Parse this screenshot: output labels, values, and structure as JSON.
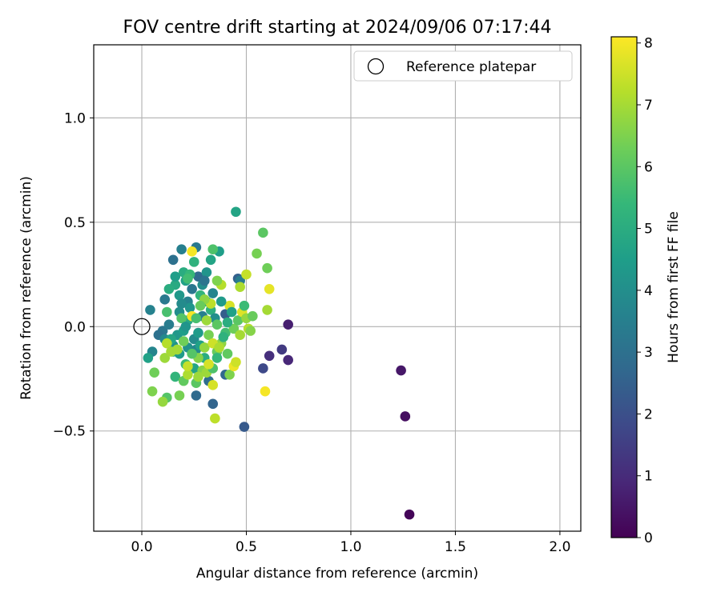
{
  "chart_data": {
    "type": "scatter",
    "title": "FOV centre drift starting at 2024/09/06 07:17:44",
    "xlabel": "Angular distance from reference (arcmin)",
    "ylabel": "Rotation from reference (arcmin)",
    "xlim": [
      -0.23,
      2.1
    ],
    "ylim": [
      -0.98,
      1.35
    ],
    "xticks": [
      0.0,
      0.5,
      1.0,
      1.5,
      2.0
    ],
    "xtick_labels": [
      "0.0",
      "0.5",
      "1.0",
      "1.5",
      "2.0"
    ],
    "yticks": [
      -0.5,
      0.0,
      0.5,
      1.0
    ],
    "ytick_labels": [
      "−0.5",
      "0.0",
      "0.5",
      "1.0"
    ],
    "grid": true,
    "legend": {
      "placement": "top-right",
      "entries": [
        {
          "label": "Reference platepar",
          "marker": "open-circle"
        }
      ]
    },
    "reference_point": {
      "x": 0.0,
      "y": 0.0
    },
    "colorbar": {
      "label": "Hours from first FF file",
      "range": [
        0,
        8.1
      ],
      "ticks": [
        0,
        1,
        2,
        3,
        4,
        5,
        6,
        7,
        8
      ],
      "tick_labels": [
        "0",
        "1",
        "2",
        "3",
        "4",
        "5",
        "6",
        "7",
        "8"
      ],
      "colormap": "viridis",
      "colormap_stops": [
        "#440154",
        "#482878",
        "#3e4989",
        "#31688e",
        "#26828e",
        "#1f9e89",
        "#35b779",
        "#6ece58",
        "#b5de2b",
        "#fde725"
      ]
    },
    "points": [
      {
        "x": 1.28,
        "y": -0.9,
        "c": 0.1
      },
      {
        "x": 1.26,
        "y": -0.43,
        "c": 0.3
      },
      {
        "x": 1.24,
        "y": -0.21,
        "c": 0.5
      },
      {
        "x": 0.7,
        "y": 0.01,
        "c": 0.7
      },
      {
        "x": 0.7,
        "y": -0.16,
        "c": 0.9
      },
      {
        "x": 0.61,
        "y": -0.14,
        "c": 1.1
      },
      {
        "x": 0.67,
        "y": -0.11,
        "c": 1.4
      },
      {
        "x": 0.58,
        "y": -0.2,
        "c": 1.8
      },
      {
        "x": 0.49,
        "y": -0.48,
        "c": 2.3
      },
      {
        "x": 0.34,
        "y": -0.37,
        "c": 2.6
      },
      {
        "x": 0.26,
        "y": -0.33,
        "c": 2.8
      },
      {
        "x": 0.4,
        "y": -0.23,
        "c": 2.7
      },
      {
        "x": 0.32,
        "y": -0.26,
        "c": 2.9
      },
      {
        "x": 0.46,
        "y": 0.23,
        "c": 2.5
      },
      {
        "x": 0.47,
        "y": 0.22,
        "c": 3.4
      },
      {
        "x": 0.45,
        "y": 0.55,
        "c": 4.7
      },
      {
        "x": 0.4,
        "y": 0.06,
        "c": 2.4
      },
      {
        "x": 0.26,
        "y": 0.38,
        "c": 3.3
      },
      {
        "x": 0.19,
        "y": 0.37,
        "c": 3.5
      },
      {
        "x": 0.15,
        "y": 0.32,
        "c": 3.0
      },
      {
        "x": 0.27,
        "y": 0.24,
        "c": 2.8
      },
      {
        "x": 0.24,
        "y": 0.18,
        "c": 3.2
      },
      {
        "x": 0.22,
        "y": 0.12,
        "c": 3.6
      },
      {
        "x": 0.18,
        "y": 0.07,
        "c": 4.0
      },
      {
        "x": 0.11,
        "y": 0.13,
        "c": 3.3
      },
      {
        "x": 0.04,
        "y": 0.08,
        "c": 3.6
      },
      {
        "x": 0.1,
        "y": -0.02,
        "c": 3.2
      },
      {
        "x": 0.08,
        "y": -0.04,
        "c": 3.0
      },
      {
        "x": 0.13,
        "y": 0.01,
        "c": 3.4
      },
      {
        "x": 0.05,
        "y": -0.12,
        "c": 3.7
      },
      {
        "x": 0.03,
        "y": -0.15,
        "c": 4.6
      },
      {
        "x": 0.11,
        "y": -0.06,
        "c": 3.8
      },
      {
        "x": 0.15,
        "y": -0.09,
        "c": 4.1
      },
      {
        "x": 0.17,
        "y": -0.04,
        "c": 4.3
      },
      {
        "x": 0.2,
        "y": -0.02,
        "c": 4.5
      },
      {
        "x": 0.22,
        "y": 0.03,
        "c": 4.9
      },
      {
        "x": 0.23,
        "y": 0.09,
        "c": 4.2
      },
      {
        "x": 0.25,
        "y": -0.06,
        "c": 3.9
      },
      {
        "x": 0.27,
        "y": -0.03,
        "c": 4.4
      },
      {
        "x": 0.29,
        "y": 0.05,
        "c": 3.5
      },
      {
        "x": 0.31,
        "y": 0.12,
        "c": 4.8
      },
      {
        "x": 0.33,
        "y": 0.08,
        "c": 5.1
      },
      {
        "x": 0.34,
        "y": 0.16,
        "c": 3.7
      },
      {
        "x": 0.35,
        "y": 0.04,
        "c": 4.0
      },
      {
        "x": 0.28,
        "y": 0.15,
        "c": 5.3
      },
      {
        "x": 0.21,
        "y": 0.22,
        "c": 4.6
      },
      {
        "x": 0.2,
        "y": 0.26,
        "c": 5.0
      },
      {
        "x": 0.23,
        "y": 0.25,
        "c": 5.4
      },
      {
        "x": 0.16,
        "y": 0.2,
        "c": 4.9
      },
      {
        "x": 0.18,
        "y": 0.15,
        "c": 4.3
      },
      {
        "x": 0.31,
        "y": 0.26,
        "c": 4.2
      },
      {
        "x": 0.33,
        "y": 0.32,
        "c": 4.7
      },
      {
        "x": 0.37,
        "y": 0.36,
        "c": 4.5
      },
      {
        "x": 0.34,
        "y": 0.37,
        "c": 5.8
      },
      {
        "x": 0.25,
        "y": 0.31,
        "c": 5.2
      },
      {
        "x": 0.22,
        "y": 0.23,
        "c": 5.6
      },
      {
        "x": 0.19,
        "y": 0.04,
        "c": 5.9
      },
      {
        "x": 0.12,
        "y": 0.07,
        "c": 5.7
      },
      {
        "x": 0.15,
        "y": -0.12,
        "c": 5.1
      },
      {
        "x": 0.14,
        "y": -0.06,
        "c": 4.8
      },
      {
        "x": 0.18,
        "y": -0.13,
        "c": 4.4
      },
      {
        "x": 0.22,
        "y": -0.1,
        "c": 4.1
      },
      {
        "x": 0.26,
        "y": -0.11,
        "c": 3.8
      },
      {
        "x": 0.28,
        "y": -0.09,
        "c": 4.6
      },
      {
        "x": 0.3,
        "y": -0.15,
        "c": 5.0
      },
      {
        "x": 0.25,
        "y": -0.2,
        "c": 4.7
      },
      {
        "x": 0.21,
        "y": -0.18,
        "c": 5.5
      },
      {
        "x": 0.16,
        "y": -0.24,
        "c": 5.3
      },
      {
        "x": 0.2,
        "y": -0.26,
        "c": 6.1
      },
      {
        "x": 0.12,
        "y": -0.34,
        "c": 5.9
      },
      {
        "x": 0.1,
        "y": -0.36,
        "c": 6.8
      },
      {
        "x": 0.05,
        "y": -0.31,
        "c": 6.5
      },
      {
        "x": 0.06,
        "y": -0.22,
        "c": 6.3
      },
      {
        "x": 0.11,
        "y": -0.15,
        "c": 6.9
      },
      {
        "x": 0.12,
        "y": -0.08,
        "c": 7.2
      },
      {
        "x": 0.14,
        "y": -0.12,
        "c": 7.0
      },
      {
        "x": 0.18,
        "y": -0.33,
        "c": 6.4
      },
      {
        "x": 0.22,
        "y": -0.23,
        "c": 7.1
      },
      {
        "x": 0.22,
        "y": -0.19,
        "c": 7.4
      },
      {
        "x": 0.26,
        "y": -0.27,
        "c": 6.0
      },
      {
        "x": 0.29,
        "y": -0.21,
        "c": 6.6
      },
      {
        "x": 0.31,
        "y": -0.22,
        "c": 6.9
      },
      {
        "x": 0.34,
        "y": -0.2,
        "c": 5.8
      },
      {
        "x": 0.34,
        "y": -0.28,
        "c": 7.6
      },
      {
        "x": 0.35,
        "y": -0.44,
        "c": 7.3
      },
      {
        "x": 0.36,
        "y": -0.12,
        "c": 6.2
      },
      {
        "x": 0.38,
        "y": -0.08,
        "c": 6.7
      },
      {
        "x": 0.4,
        "y": -0.03,
        "c": 5.6
      },
      {
        "x": 0.41,
        "y": -0.13,
        "c": 6.1
      },
      {
        "x": 0.42,
        "y": -0.23,
        "c": 6.5
      },
      {
        "x": 0.44,
        "y": -0.19,
        "c": 7.9
      },
      {
        "x": 0.45,
        "y": -0.17,
        "c": 7.5
      },
      {
        "x": 0.44,
        "y": -0.01,
        "c": 6.3
      },
      {
        "x": 0.46,
        "y": 0.03,
        "c": 6.0
      },
      {
        "x": 0.47,
        "y": -0.04,
        "c": 7.0
      },
      {
        "x": 0.48,
        "y": 0.07,
        "c": 7.7
      },
      {
        "x": 0.49,
        "y": 0.1,
        "c": 5.5
      },
      {
        "x": 0.5,
        "y": 0.04,
        "c": 6.8
      },
      {
        "x": 0.51,
        "y": -0.01,
        "c": 7.2
      },
      {
        "x": 0.52,
        "y": -0.02,
        "c": 6.6
      },
      {
        "x": 0.53,
        "y": 0.05,
        "c": 6.2
      },
      {
        "x": 0.47,
        "y": 0.19,
        "c": 7.1
      },
      {
        "x": 0.5,
        "y": 0.25,
        "c": 7.4
      },
      {
        "x": 0.55,
        "y": 0.35,
        "c": 6.4
      },
      {
        "x": 0.58,
        "y": 0.45,
        "c": 6.0
      },
      {
        "x": 0.6,
        "y": 0.28,
        "c": 6.3
      },
      {
        "x": 0.61,
        "y": 0.18,
        "c": 7.8
      },
      {
        "x": 0.6,
        "y": 0.08,
        "c": 7.0
      },
      {
        "x": 0.59,
        "y": -0.31,
        "c": 8.0
      },
      {
        "x": 0.24,
        "y": 0.36,
        "c": 8.0
      },
      {
        "x": 0.24,
        "y": 0.05,
        "c": 8.0
      },
      {
        "x": 0.42,
        "y": 0.1,
        "c": 7.6
      },
      {
        "x": 0.38,
        "y": 0.2,
        "c": 7.2
      },
      {
        "x": 0.36,
        "y": 0.22,
        "c": 6.5
      },
      {
        "x": 0.33,
        "y": 0.11,
        "c": 7.3
      },
      {
        "x": 0.3,
        "y": 0.13,
        "c": 6.7
      },
      {
        "x": 0.28,
        "y": 0.1,
        "c": 6.2
      },
      {
        "x": 0.26,
        "y": 0.04,
        "c": 5.7
      },
      {
        "x": 0.31,
        "y": 0.03,
        "c": 6.9
      },
      {
        "x": 0.36,
        "y": 0.01,
        "c": 6.0
      },
      {
        "x": 0.32,
        "y": -0.04,
        "c": 6.4
      },
      {
        "x": 0.3,
        "y": -0.1,
        "c": 6.8
      },
      {
        "x": 0.34,
        "y": -0.08,
        "c": 7.5
      },
      {
        "x": 0.37,
        "y": -0.1,
        "c": 7.1
      },
      {
        "x": 0.27,
        "y": -0.15,
        "c": 6.6
      },
      {
        "x": 0.24,
        "y": -0.13,
        "c": 5.9
      },
      {
        "x": 0.2,
        "y": -0.07,
        "c": 6.3
      },
      {
        "x": 0.17,
        "y": -0.11,
        "c": 7.0
      },
      {
        "x": 0.27,
        "y": -0.24,
        "c": 6.9
      },
      {
        "x": 0.32,
        "y": -0.18,
        "c": 7.6
      },
      {
        "x": 0.36,
        "y": -0.15,
        "c": 5.4
      },
      {
        "x": 0.39,
        "y": -0.05,
        "c": 5.2
      },
      {
        "x": 0.41,
        "y": 0.02,
        "c": 5.0
      },
      {
        "x": 0.43,
        "y": 0.07,
        "c": 4.6
      },
      {
        "x": 0.38,
        "y": 0.12,
        "c": 4.4
      },
      {
        "x": 0.29,
        "y": 0.2,
        "c": 4.0
      },
      {
        "x": 0.3,
        "y": 0.22,
        "c": 3.1
      },
      {
        "x": 0.21,
        "y": 0.0,
        "c": 4.2
      },
      {
        "x": 0.19,
        "y": 0.11,
        "c": 3.9
      },
      {
        "x": 0.16,
        "y": 0.24,
        "c": 4.5
      },
      {
        "x": 0.13,
        "y": 0.18,
        "c": 5.0
      }
    ]
  }
}
